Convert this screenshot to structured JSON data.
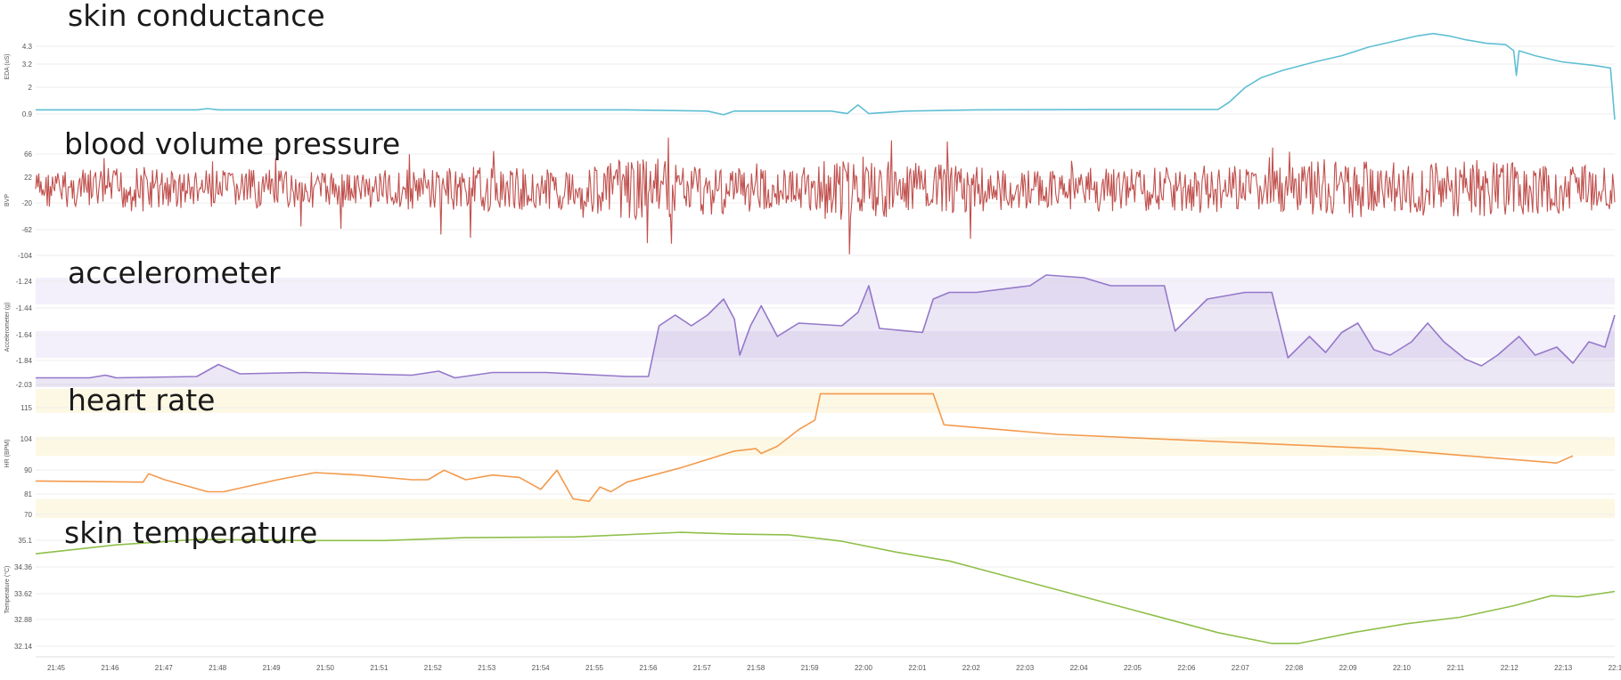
{
  "chart_data": {
    "type": "line",
    "x_ticks": [
      "21:45",
      "21:46",
      "21:47",
      "21:48",
      "21:49",
      "21:50",
      "21:51",
      "21:52",
      "21:53",
      "21:54",
      "21:55",
      "21:56",
      "21:57",
      "21:58",
      "21:59",
      "22:00",
      "22:01",
      "22:02",
      "22:03",
      "22:04",
      "22:05",
      "22:06",
      "22:07",
      "22:08",
      "22:09",
      "22:10",
      "22:11",
      "22:12",
      "22:13",
      "22:14"
    ],
    "panels": [
      {
        "key": "eda",
        "title": "skin conductance",
        "ylabel": "EDA (uS)",
        "color": "#5fbfd3",
        "fill": false,
        "yticks": [
          "4.3",
          "3.2",
          "2",
          "0.9"
        ],
        "ylim": [
          0.3,
          5.0
        ],
        "bands": [],
        "series": [
          [
            0,
            0.9
          ],
          [
            3,
            0.9
          ],
          [
            3.2,
            0.95
          ],
          [
            3.4,
            0.9
          ],
          [
            11,
            0.9
          ],
          [
            12.5,
            0.85
          ],
          [
            12.8,
            0.7
          ],
          [
            13,
            0.85
          ],
          [
            14.8,
            0.85
          ],
          [
            15.1,
            0.75
          ],
          [
            15.3,
            1.1
          ],
          [
            15.5,
            0.75
          ],
          [
            16.2,
            0.85
          ],
          [
            17.5,
            0.9
          ],
          [
            22,
            0.92
          ],
          [
            22.2,
            1.2
          ],
          [
            22.5,
            1.8
          ],
          [
            22.8,
            2.2
          ],
          [
            23.2,
            2.5
          ],
          [
            23.8,
            2.85
          ],
          [
            24.3,
            3.1
          ],
          [
            24.8,
            3.45
          ],
          [
            25.3,
            3.7
          ],
          [
            25.7,
            3.9
          ],
          [
            26,
            4.0
          ],
          [
            26.3,
            3.9
          ],
          [
            26.6,
            3.75
          ],
          [
            27,
            3.6
          ],
          [
            27.35,
            3.55
          ],
          [
            27.5,
            3.3
          ],
          [
            27.55,
            2.3
          ],
          [
            27.6,
            3.3
          ],
          [
            27.9,
            3.1
          ],
          [
            28.4,
            2.85
          ],
          [
            29,
            2.7
          ],
          [
            29.3,
            2.6
          ],
          [
            29.38,
            0.5
          ]
        ]
      },
      {
        "key": "bvp",
        "title": "blood volume pressure",
        "ylabel": "BVP",
        "color": "#c0504d",
        "fill": false,
        "yticks": [
          "66",
          "22",
          "-20",
          "-62",
          "-104"
        ],
        "ylim": [
          -110,
          75
        ],
        "bands": [],
        "series": [],
        "activity_envelope": [
          [
            0,
            0.3
          ],
          [
            1,
            0.35
          ],
          [
            2,
            0.5
          ],
          [
            3,
            0.3
          ],
          [
            4,
            0.35
          ],
          [
            5,
            0.3
          ],
          [
            6,
            0.3
          ],
          [
            7,
            0.4
          ],
          [
            8,
            0.45
          ],
          [
            9,
            0.4
          ],
          [
            10,
            0.35
          ],
          [
            11,
            0.75
          ],
          [
            12,
            0.65
          ],
          [
            13,
            0.5
          ],
          [
            14,
            0.3
          ],
          [
            15,
            0.9
          ],
          [
            16,
            0.7
          ],
          [
            17,
            0.5
          ],
          [
            18,
            0.4
          ],
          [
            19,
            0.3
          ],
          [
            20,
            0.5
          ],
          [
            21,
            0.45
          ],
          [
            22,
            0.55
          ],
          [
            23,
            0.4
          ],
          [
            24,
            0.75
          ],
          [
            25,
            0.7
          ],
          [
            26,
            0.6
          ],
          [
            27,
            0.75
          ],
          [
            28,
            0.5
          ],
          [
            29,
            0.5
          ],
          [
            29.38,
            0.4
          ]
        ]
      },
      {
        "key": "acc",
        "title": "accelerometer",
        "ylabel": "Accelerometer (g)",
        "color": "#9478c9",
        "fill": true,
        "yticks": [
          "-1.24",
          "-1.44",
          "-1.64",
          "-1.84",
          "-2.03"
        ],
        "ylim": [
          -2.06,
          -1.16
        ],
        "bands": [
          [
            -1.44,
            -1.24
          ],
          [
            -1.84,
            -1.64
          ]
        ],
        "series": [
          [
            0,
            -1.99
          ],
          [
            1,
            -1.99
          ],
          [
            1.3,
            -1.97
          ],
          [
            1.5,
            -1.99
          ],
          [
            3,
            -1.98
          ],
          [
            3.4,
            -1.89
          ],
          [
            3.8,
            -1.96
          ],
          [
            5,
            -1.95
          ],
          [
            6,
            -1.96
          ],
          [
            7,
            -1.97
          ],
          [
            7.5,
            -1.94
          ],
          [
            7.8,
            -1.99
          ],
          [
            8.5,
            -1.95
          ],
          [
            9.5,
            -1.95
          ],
          [
            10.5,
            -1.97
          ],
          [
            11,
            -1.98
          ],
          [
            11.4,
            -1.98
          ],
          [
            11.6,
            -1.6
          ],
          [
            11.9,
            -1.52
          ],
          [
            12.2,
            -1.6
          ],
          [
            12.5,
            -1.52
          ],
          [
            12.8,
            -1.4
          ],
          [
            13,
            -1.55
          ],
          [
            13.1,
            -1.82
          ],
          [
            13.3,
            -1.6
          ],
          [
            13.5,
            -1.45
          ],
          [
            13.8,
            -1.68
          ],
          [
            14.2,
            -1.58
          ],
          [
            15,
            -1.6
          ],
          [
            15.3,
            -1.5
          ],
          [
            15.5,
            -1.3
          ],
          [
            15.7,
            -1.62
          ],
          [
            16.5,
            -1.65
          ],
          [
            16.7,
            -1.4
          ],
          [
            17,
            -1.35
          ],
          [
            17.5,
            -1.35
          ],
          [
            18.5,
            -1.3
          ],
          [
            18.8,
            -1.22
          ],
          [
            19.5,
            -1.24
          ],
          [
            20,
            -1.3
          ],
          [
            21,
            -1.3
          ],
          [
            21.2,
            -1.64
          ],
          [
            21.8,
            -1.4
          ],
          [
            22.5,
            -1.35
          ],
          [
            23,
            -1.35
          ],
          [
            23.3,
            -1.84
          ],
          [
            23.7,
            -1.68
          ],
          [
            24,
            -1.8
          ],
          [
            24.3,
            -1.65
          ],
          [
            24.6,
            -1.58
          ],
          [
            24.9,
            -1.78
          ],
          [
            25.2,
            -1.82
          ],
          [
            25.6,
            -1.72
          ],
          [
            25.9,
            -1.58
          ],
          [
            26.2,
            -1.72
          ],
          [
            26.6,
            -1.85
          ],
          [
            26.9,
            -1.9
          ],
          [
            27.2,
            -1.82
          ],
          [
            27.6,
            -1.68
          ],
          [
            27.9,
            -1.82
          ],
          [
            28.3,
            -1.76
          ],
          [
            28.6,
            -1.88
          ],
          [
            28.9,
            -1.72
          ],
          [
            29.2,
            -1.76
          ],
          [
            29.38,
            -1.52
          ]
        ]
      },
      {
        "key": "hr",
        "title": "heart rate",
        "ylabel": "HR (BPM)",
        "color": "#f39a4d",
        "fill": false,
        "yticks": [
          "115",
          "104",
          "90",
          "81",
          "70"
        ],
        "ylim": [
          66,
          120
        ],
        "bands": [
          [
            110,
            120
          ],
          [
            92,
            100
          ],
          [
            66,
            74
          ]
        ],
        "series": [
          [
            0,
            81.5
          ],
          [
            2,
            81
          ],
          [
            2.1,
            84.5
          ],
          [
            2.4,
            82
          ],
          [
            3.2,
            77
          ],
          [
            3.5,
            77
          ],
          [
            4.5,
            82
          ],
          [
            5.2,
            85
          ],
          [
            6,
            84
          ],
          [
            7,
            82
          ],
          [
            7.3,
            82
          ],
          [
            7.6,
            86
          ],
          [
            8,
            82
          ],
          [
            8.5,
            84
          ],
          [
            9,
            83
          ],
          [
            9.4,
            78
          ],
          [
            9.7,
            86
          ],
          [
            10,
            74
          ],
          [
            10.3,
            73
          ],
          [
            10.5,
            79
          ],
          [
            10.7,
            77
          ],
          [
            11,
            81
          ],
          [
            12,
            87
          ],
          [
            13,
            94
          ],
          [
            13.4,
            95
          ],
          [
            13.5,
            93
          ],
          [
            13.8,
            96
          ],
          [
            14.2,
            103
          ],
          [
            14.5,
            107
          ],
          [
            14.6,
            118
          ],
          [
            16.7,
            118
          ],
          [
            16.9,
            105
          ],
          [
            19,
            101
          ],
          [
            21,
            99
          ],
          [
            23,
            97
          ],
          [
            25,
            95
          ],
          [
            28.3,
            89
          ],
          [
            28.6,
            92
          ]
        ]
      },
      {
        "key": "temp",
        "title": "skin temperature",
        "ylabel": "Temperature (°C)",
        "color": "#8fbf4a",
        "fill": false,
        "yticks": [
          "35.1",
          "34.36",
          "33.62",
          "32.88",
          "32.14"
        ],
        "ylim": [
          31.95,
          35.55
        ],
        "bands": [],
        "series": [
          [
            0,
            34.75
          ],
          [
            1.5,
            35.0
          ],
          [
            3,
            35.15
          ],
          [
            5,
            35.12
          ],
          [
            6.5,
            35.12
          ],
          [
            8,
            35.2
          ],
          [
            10,
            35.22
          ],
          [
            12,
            35.35
          ],
          [
            13,
            35.3
          ],
          [
            14,
            35.28
          ],
          [
            15,
            35.1
          ],
          [
            16,
            34.8
          ],
          [
            17,
            34.55
          ],
          [
            18,
            34.15
          ],
          [
            19,
            33.75
          ],
          [
            20,
            33.35
          ],
          [
            21,
            32.95
          ],
          [
            22,
            32.55
          ],
          [
            23,
            32.25
          ],
          [
            23.5,
            32.25
          ],
          [
            24.5,
            32.55
          ],
          [
            25.5,
            32.8
          ],
          [
            26.5,
            32.98
          ],
          [
            27.5,
            33.3
          ],
          [
            28.2,
            33.58
          ],
          [
            28.7,
            33.55
          ],
          [
            29.38,
            33.7
          ]
        ]
      }
    ]
  }
}
